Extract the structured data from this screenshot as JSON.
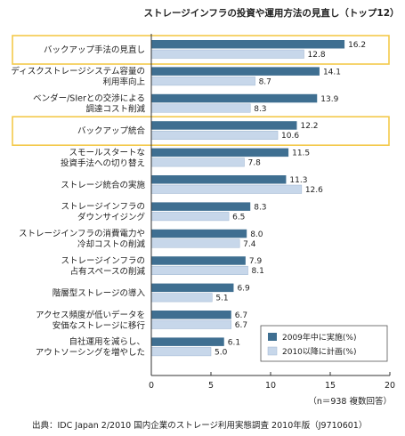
{
  "chart_data": {
    "type": "bar",
    "orientation": "horizontal",
    "title": "ストレージインフラの投資や運用方法の見直し（トップ12）",
    "categories": [
      [
        "バックアップ手法の見直し"
      ],
      [
        "ディスクストレージシステム容量の",
        "利用率向上"
      ],
      [
        "ベンダー/SIerとの交渉による",
        "調達コスト削減"
      ],
      [
        "バックアップ統合"
      ],
      [
        "スモールスタートな",
        "投資手法への切り替え"
      ],
      [
        "ストレージ統合の実施"
      ],
      [
        "ストレージインフラの",
        "ダウンサイジング"
      ],
      [
        "ストレージインフラの消費電力や",
        "冷却コストの削減"
      ],
      [
        "ストレージインフラの",
        "占有スペースの削減"
      ],
      [
        "階層型ストレージの導入"
      ],
      [
        "アクセス頻度が低いデータを",
        "安価なストレージに移行"
      ],
      [
        "自社運用を減らし、",
        "アウトソーシングを増やした"
      ]
    ],
    "highlighted": [
      0,
      3
    ],
    "series": [
      {
        "name": "2009年中に実施(%)",
        "color": "#3f6f91",
        "values": [
          16.2,
          14.1,
          13.9,
          12.2,
          11.5,
          11.3,
          8.3,
          8.0,
          7.9,
          6.9,
          6.7,
          6.1
        ]
      },
      {
        "name": "2010以降に計画(%)",
        "color": "#c7d7ea",
        "values": [
          12.8,
          8.7,
          8.3,
          10.6,
          7.8,
          12.6,
          6.5,
          7.4,
          8.1,
          5.1,
          6.7,
          5.0
        ]
      }
    ],
    "xlim": [
      0,
      20
    ],
    "xticks": [
      0,
      5,
      10,
      15,
      20
    ],
    "legend_position": "bottom-right",
    "highlight_color": "#f3c94a",
    "grid": false
  },
  "note": "（n＝938 複数回答）",
  "source": "出典：IDC Japan 2/2010 国内企業のストレージ利用実態調査 2010年版（J9710601）"
}
